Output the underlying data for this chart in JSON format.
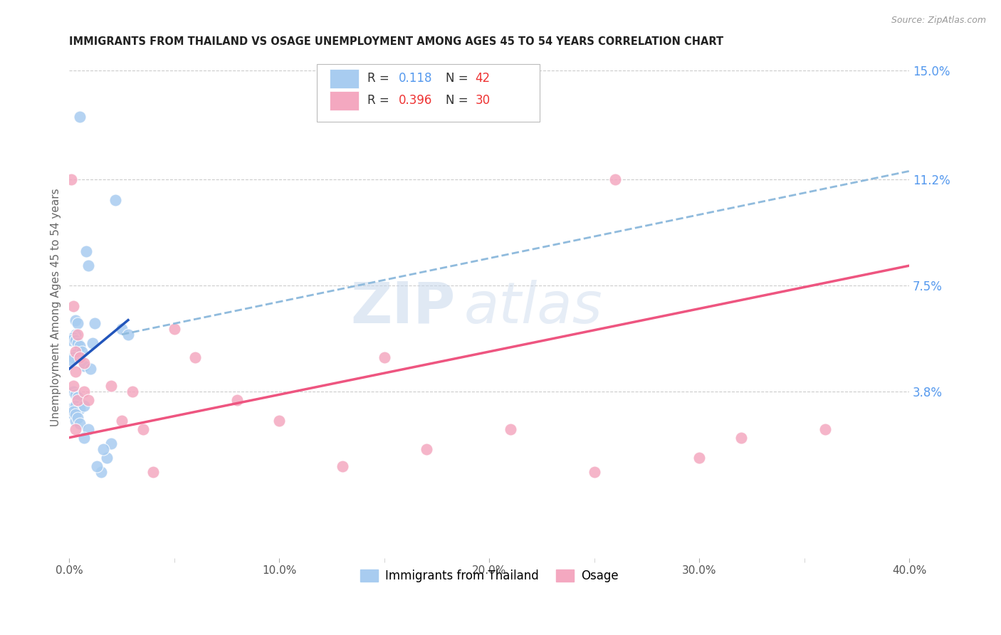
{
  "title": "IMMIGRANTS FROM THAILAND VS OSAGE UNEMPLOYMENT AMONG AGES 45 TO 54 YEARS CORRELATION CHART",
  "source": "Source: ZipAtlas.com",
  "ylabel": "Unemployment Among Ages 45 to 54 years",
  "xlim": [
    0,
    0.4
  ],
  "ylim": [
    -0.02,
    0.155
  ],
  "xtick_labels": [
    "0.0%",
    "",
    "10.0%",
    "",
    "20.0%",
    "",
    "30.0%",
    "",
    "40.0%"
  ],
  "xtick_vals": [
    0.0,
    0.05,
    0.1,
    0.15,
    0.2,
    0.25,
    0.3,
    0.35,
    0.4
  ],
  "ytick_right_labels": [
    "3.8%",
    "7.5%",
    "11.2%",
    "15.0%"
  ],
  "ytick_right_vals": [
    0.038,
    0.075,
    0.112,
    0.15
  ],
  "blue_color": "#A8CCF0",
  "pink_color": "#F4A8C0",
  "blue_line_color": "#2255BB",
  "pink_line_color": "#EE5580",
  "dashed_line_color": "#90BBDD",
  "watermark_zip": "ZIP",
  "watermark_atlas": "atlas",
  "blue_scatter_x": [
    0.005,
    0.022,
    0.008,
    0.009,
    0.003,
    0.004,
    0.003,
    0.002,
    0.001,
    0.003,
    0.004,
    0.005,
    0.003,
    0.002,
    0.001,
    0.006,
    0.007,
    0.01,
    0.012,
    0.011,
    0.025,
    0.028,
    0.002,
    0.003,
    0.004,
    0.001,
    0.002,
    0.003,
    0.005,
    0.007,
    0.002,
    0.003,
    0.003,
    0.004,
    0.005,
    0.015,
    0.018,
    0.02,
    0.016,
    0.013,
    0.009,
    0.007
  ],
  "blue_scatter_y": [
    0.134,
    0.105,
    0.087,
    0.082,
    0.063,
    0.062,
    0.058,
    0.057,
    0.056,
    0.056,
    0.055,
    0.054,
    0.051,
    0.05,
    0.049,
    0.052,
    0.047,
    0.046,
    0.062,
    0.055,
    0.06,
    0.058,
    0.038,
    0.037,
    0.036,
    0.032,
    0.03,
    0.033,
    0.032,
    0.033,
    0.031,
    0.028,
    0.03,
    0.029,
    0.027,
    0.01,
    0.015,
    0.02,
    0.018,
    0.012,
    0.025,
    0.022
  ],
  "pink_scatter_x": [
    0.001,
    0.002,
    0.004,
    0.003,
    0.005,
    0.007,
    0.003,
    0.002,
    0.004,
    0.003,
    0.007,
    0.009,
    0.02,
    0.025,
    0.03,
    0.05,
    0.06,
    0.08,
    0.1,
    0.13,
    0.15,
    0.17,
    0.21,
    0.25,
    0.3,
    0.32,
    0.36,
    0.26,
    0.035,
    0.04
  ],
  "pink_scatter_y": [
    0.112,
    0.068,
    0.058,
    0.052,
    0.05,
    0.048,
    0.045,
    0.04,
    0.035,
    0.025,
    0.038,
    0.035,
    0.04,
    0.028,
    0.038,
    0.06,
    0.05,
    0.035,
    0.028,
    0.012,
    0.05,
    0.018,
    0.025,
    0.01,
    0.015,
    0.022,
    0.025,
    0.112,
    0.025,
    0.01
  ],
  "blue_trend_x": [
    0.0,
    0.028
  ],
  "blue_trend_y": [
    0.046,
    0.063
  ],
  "pink_trend_x": [
    0.0,
    0.4
  ],
  "pink_trend_y": [
    0.022,
    0.082
  ],
  "dashed_trend_x": [
    0.025,
    0.4
  ],
  "dashed_trend_y": [
    0.058,
    0.115
  ],
  "figsize": [
    14.06,
    8.92
  ],
  "dpi": 100
}
